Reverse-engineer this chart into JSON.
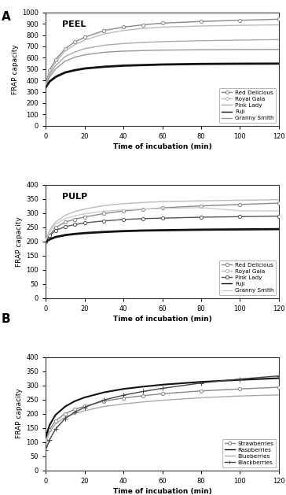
{
  "time": [
    0,
    2,
    5,
    10,
    15,
    20,
    30,
    40,
    50,
    60,
    80,
    100,
    120
  ],
  "peel": {
    "title": "PEEL",
    "ylim": [
      0,
      1000
    ],
    "yticks": [
      0,
      100,
      200,
      300,
      400,
      500,
      600,
      700,
      800,
      900,
      1000
    ],
    "series": {
      "Red Delicious": {
        "y": [
          370,
          490,
          580,
          680,
          740,
          780,
          840,
          870,
          890,
          905,
          920,
          930,
          940
        ],
        "color": "#888888",
        "marker": "o",
        "markersize": 3,
        "lw": 1.0,
        "ls": "-",
        "mfc": "white"
      },
      "Royal Gala": {
        "y": [
          360,
          470,
          560,
          660,
          715,
          755,
          810,
          840,
          858,
          870,
          880,
          886,
          890
        ],
        "color": "#bbbbbb",
        "marker": "o",
        "markersize": 0,
        "lw": 1.0,
        "ls": "-",
        "mfc": "white"
      },
      "Pink Lady": {
        "y": [
          355,
          450,
          530,
          610,
          650,
          680,
          710,
          725,
          735,
          742,
          750,
          755,
          760
        ],
        "color": "#aaaaaa",
        "marker": "None",
        "markersize": 0,
        "lw": 1.0,
        "ls": "-",
        "mfc": "white"
      },
      "Fuji": {
        "y": [
          340,
          390,
          430,
          470,
          490,
          505,
          520,
          530,
          535,
          540,
          545,
          547,
          548
        ],
        "color": "#111111",
        "marker": "None",
        "markersize": 0,
        "lw": 2.0,
        "ls": "-",
        "mfc": "white"
      },
      "Granny Smith": {
        "y": [
          358,
          430,
          500,
          570,
          605,
          625,
          648,
          658,
          663,
          667,
          670,
          672,
          673
        ],
        "color": "#999999",
        "marker": "None",
        "markersize": 0,
        "lw": 1.0,
        "ls": "-",
        "mfc": "white"
      }
    }
  },
  "pulp": {
    "title": "PULP",
    "ylim": [
      0,
      400
    ],
    "yticks": [
      0,
      50,
      100,
      150,
      200,
      250,
      300,
      350,
      400
    ],
    "series": {
      "Red Delicious": {
        "y": [
          198,
          222,
          248,
          268,
          278,
          286,
          298,
          307,
          313,
          318,
          325,
          330,
          335
        ],
        "color": "#888888",
        "marker": "o",
        "markersize": 3,
        "lw": 1.0,
        "ls": "-",
        "mfc": "white"
      },
      "Royal Gala": {
        "y": [
          205,
          240,
          268,
          292,
          305,
          314,
          326,
          333,
          337,
          340,
          343,
          345,
          347
        ],
        "color": "#bbbbbb",
        "marker": "o",
        "markersize": 0,
        "lw": 1.0,
        "ls": "-",
        "mfc": "white"
      },
      "Pink Lady": {
        "y": [
          200,
          220,
          238,
          252,
          259,
          265,
          272,
          277,
          280,
          282,
          285,
          287,
          289
        ],
        "color": "#555555",
        "marker": "o",
        "markersize": 3,
        "lw": 1.0,
        "ls": "-",
        "mfc": "white"
      },
      "Fuji": {
        "y": [
          198,
          207,
          215,
          222,
          226,
          229,
          233,
          236,
          238,
          239,
          241,
          242,
          243
        ],
        "color": "#111111",
        "marker": "None",
        "markersize": 0,
        "lw": 2.0,
        "ls": "-",
        "mfc": "white"
      },
      "Granny Smith": {
        "y": [
          202,
          235,
          260,
          280,
          290,
          297,
          306,
          311,
          314,
          316,
          319,
          308,
          307
        ],
        "color": "#cccccc",
        "marker": "None",
        "markersize": 0,
        "lw": 1.0,
        "ls": "-",
        "mfc": "white"
      }
    }
  },
  "berries": {
    "ylim": [
      0,
      400
    ],
    "yticks": [
      0,
      50,
      100,
      150,
      200,
      250,
      300,
      350,
      400
    ],
    "series": {
      "Strawberries": {
        "y": [
          108,
          143,
          175,
          200,
          215,
          226,
          244,
          255,
          263,
          270,
          280,
          287,
          293
        ],
        "color": "#888888",
        "marker": "o",
        "markersize": 3,
        "lw": 1.0,
        "ls": "-",
        "mfc": "white"
      },
      "Raspberries": {
        "y": [
          118,
          160,
          195,
          225,
          244,
          257,
          275,
          287,
          295,
          302,
          312,
          319,
          325
        ],
        "color": "#111111",
        "marker": "None",
        "markersize": 0,
        "lw": 1.5,
        "ls": "-",
        "mfc": "white"
      },
      "Blueberries": {
        "y": [
          103,
          135,
          163,
          188,
          200,
          210,
          225,
          234,
          241,
          247,
          256,
          262,
          266
        ],
        "color": "#aaaaaa",
        "marker": "None",
        "markersize": 0,
        "lw": 1.0,
        "ls": "-",
        "mfc": "white"
      },
      "Blackberries": {
        "y": [
          72,
          108,
          145,
          183,
          205,
          222,
          248,
          265,
          278,
          289,
          308,
          322,
          333
        ],
        "color": "#444444",
        "marker": "+",
        "markersize": 4,
        "lw": 1.0,
        "ls": "-",
        "mfc": "white"
      }
    }
  },
  "xlabel": "Time of incubation (min)",
  "ylabel": "FRAP capacity",
  "xticks": [
    0,
    20,
    40,
    60,
    80,
    100,
    120
  ],
  "label_A": "A",
  "label_B": "B",
  "bg_color": "#ffffff",
  "fig_bg": "#ffffff"
}
